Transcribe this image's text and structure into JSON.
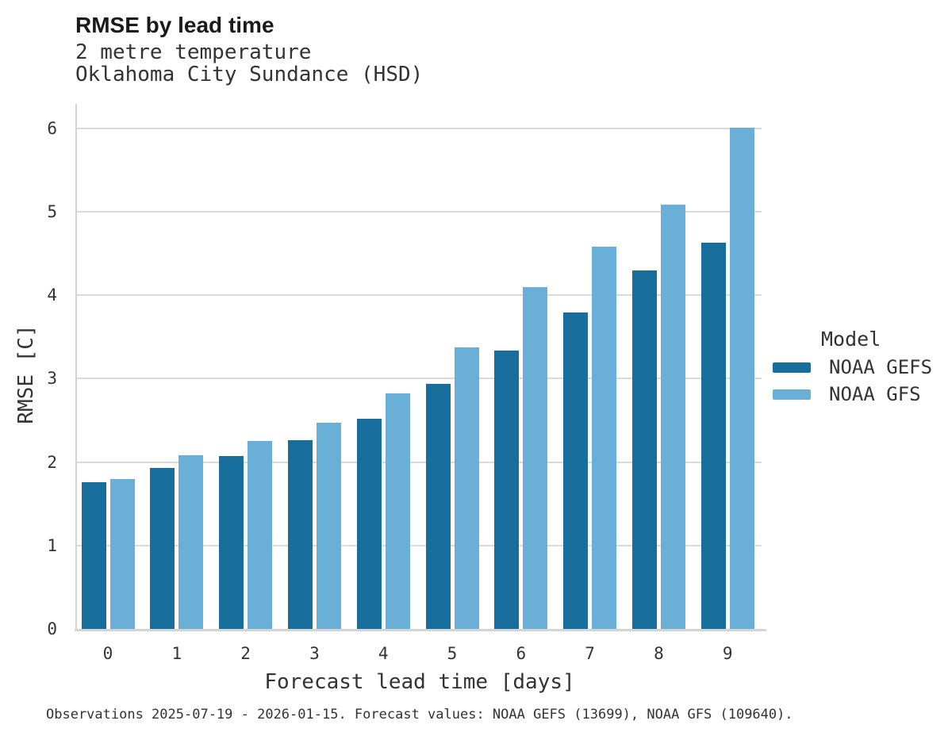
{
  "header": {
    "title": "RMSE by lead time",
    "subtitle_line1": "2 metre temperature",
    "subtitle_line2": "Oklahoma City Sundance (HSD)"
  },
  "legend": {
    "title": "Model",
    "entries": [
      {
        "label": "NOAA GEFS",
        "color": "#176d9c"
      },
      {
        "label": "NOAA GFS",
        "color": "#6aafd8"
      }
    ]
  },
  "footer": {
    "note": "Observations 2025-07-19 - 2026-01-15. Forecast values: NOAA GEFS (13699), NOAA GFS (109640)."
  },
  "chart_data": {
    "type": "bar",
    "title": "RMSE by lead time",
    "subtitle": [
      "2 metre temperature",
      "Oklahoma City Sundance (HSD)"
    ],
    "xlabel": "Forecast lead time [days]",
    "ylabel": "RMSE [C]",
    "categories": [
      "0",
      "1",
      "2",
      "3",
      "4",
      "5",
      "6",
      "7",
      "8",
      "9"
    ],
    "series": [
      {
        "name": "NOAA GEFS",
        "color": "#176d9c",
        "values": [
          1.76,
          1.93,
          2.07,
          2.26,
          2.52,
          2.94,
          3.34,
          3.79,
          4.3,
          4.63
        ]
      },
      {
        "name": "NOAA GFS",
        "color": "#6aafd8",
        "values": [
          1.8,
          2.08,
          2.25,
          2.47,
          2.82,
          3.38,
          4.1,
          4.58,
          5.09,
          6.01
        ]
      }
    ],
    "ylim": [
      0,
      6
    ],
    "yticks": [
      0,
      1,
      2,
      3,
      4,
      5,
      6
    ],
    "grid": "horizontal-gridlines",
    "legend_position": "right",
    "legend_title": "Model"
  },
  "colors": {
    "background": "#ffffff",
    "gridline": "#dadada",
    "axis_line": "#d4d4d4",
    "title_text": "#1a1a1a",
    "body_text": "#333333",
    "gefs_blue": "#176d9c",
    "gfs_blue": "#6aafd8"
  }
}
